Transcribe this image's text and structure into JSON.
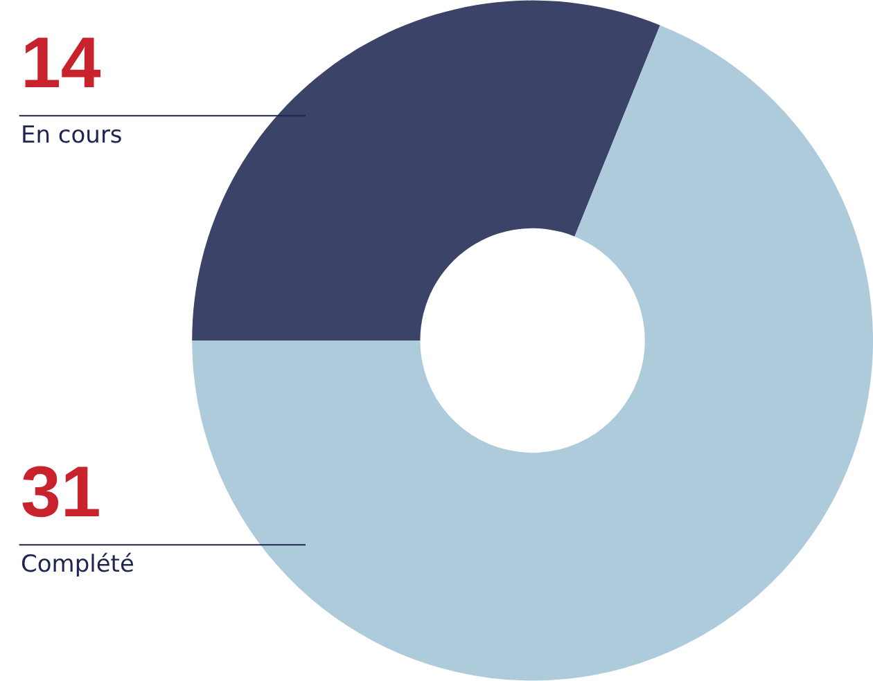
{
  "chart_data": {
    "type": "donut",
    "categories": [
      "En cours",
      "Complété"
    ],
    "values": [
      14,
      31
    ],
    "colors": [
      "#3b4468",
      "#aecbdb"
    ],
    "data_labels": true,
    "legend": false
  }
}
